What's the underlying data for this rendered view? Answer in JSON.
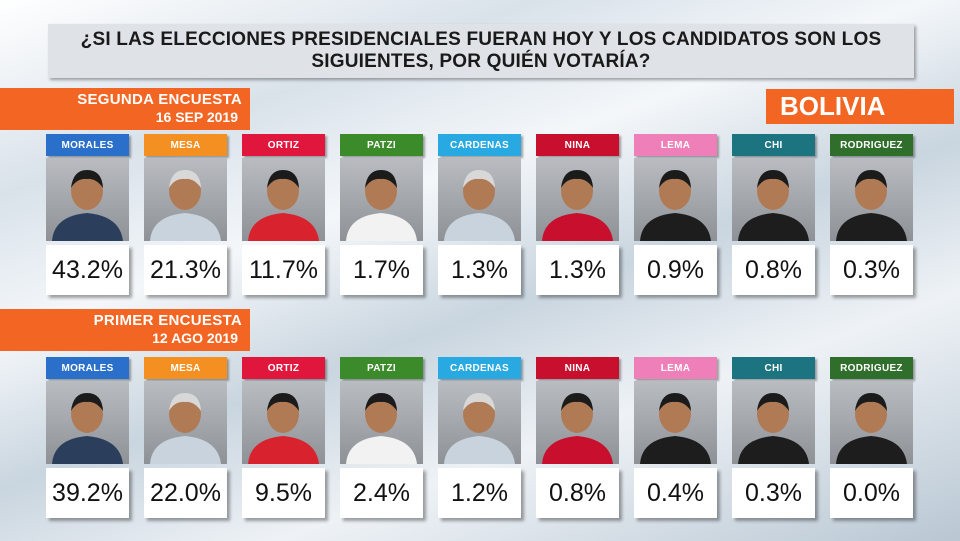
{
  "title": "¿SI LAS ELECCIONES PRESIDENCIALES FUERAN HOY Y LOS CANDIDATOS SON LOS SIGUIENTES, POR QUIÉN VOTARÍA?",
  "country": "BOLIVIA",
  "colors": {
    "accent": "#f26522",
    "MORALES": "#2a6fc9",
    "MESA": "#f39021",
    "ORTIZ": "#e0163d",
    "PATZI": "#3c8b2b",
    "CARDENAS": "#29a9e1",
    "NINA": "#c8102e",
    "LEMA": "#ef7fb8",
    "CHI": "#1c7480",
    "RODRIGUEZ": "#2f6e2b"
  },
  "chart_data": {
    "type": "table",
    "categories": [
      "MORALES",
      "MESA",
      "ORTIZ",
      "PATZI",
      "CARDENAS",
      "NINA",
      "LEMA",
      "CHI",
      "RODRIGUEZ"
    ],
    "series": [
      {
        "name": "SEGUNDA ENCUESTA",
        "date": "16 SEP 2019",
        "values": [
          43.2,
          21.3,
          11.7,
          1.7,
          1.3,
          1.3,
          0.9,
          0.8,
          0.3
        ],
        "labels": [
          "43.2%",
          "21.3%",
          "11.7%",
          "1.7%",
          "1.3%",
          "1.3%",
          "0.9%",
          "0.8%",
          "0.3%"
        ]
      },
      {
        "name": "PRIMER ENCUESTA",
        "date": "12 AGO 2019",
        "values": [
          39.2,
          22.0,
          9.5,
          2.4,
          1.2,
          0.8,
          0.4,
          0.3,
          0.0
        ],
        "labels": [
          "39.2%",
          "22.0%",
          "9.5%",
          "2.4%",
          "1.2%",
          "0.8%",
          "0.4%",
          "0.3%",
          "0.0%"
        ]
      }
    ]
  }
}
